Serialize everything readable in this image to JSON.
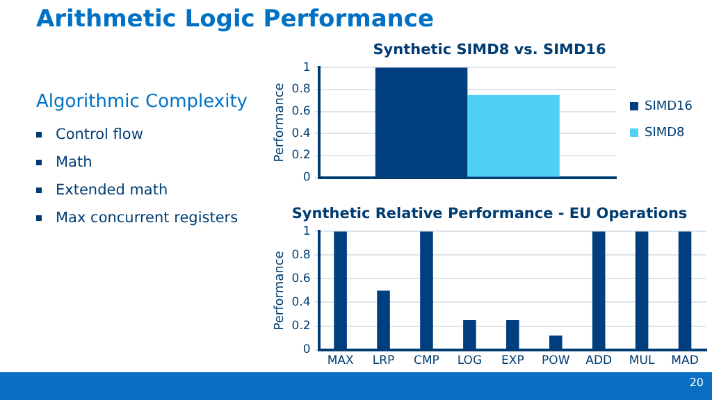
{
  "chart_data": [
    {
      "type": "other",
      "title": "Arithmetic Logic Performance",
      "subtitle": "Algorithmic Complexity",
      "annotations": [
        "Control flow",
        "Math",
        "Extended math",
        "Max concurrent registers",
        "20"
      ]
    },
    {
      "type": "bar",
      "title": "Synthetic SIMD8 vs. SIMD16",
      "ylabel": "Performance",
      "categories": [
        null
      ],
      "series": [
        {
          "name": "SIMD16",
          "color": "#003f7f",
          "values": [
            1
          ]
        },
        {
          "name": "SIMD8",
          "color": "#4fd0f5",
          "values": [
            0.75
          ]
        }
      ],
      "ylim": [
        0,
        1
      ],
      "yticks": [
        0,
        0.2,
        0.4,
        0.6,
        0.8,
        1
      ],
      "grid": "y",
      "legend": "right"
    },
    {
      "type": "bar",
      "title": "Synthetic Relative Performance - EU Operations",
      "ylabel": "Performance",
      "categories": [
        "MAX",
        "LRP",
        "CMP",
        "LOG",
        "EXP",
        "POW",
        "ADD",
        "MUL",
        "MAD"
      ],
      "series": [
        {
          "color": "#003f7f",
          "values": [
            1,
            0.5,
            1,
            0.25,
            0.25,
            0.12,
            1,
            1,
            1
          ]
        }
      ],
      "ylim": [
        0,
        1
      ],
      "yticks": [
        0,
        0.2,
        0.4,
        0.6,
        0.8,
        1
      ],
      "grid": "y"
    }
  ]
}
